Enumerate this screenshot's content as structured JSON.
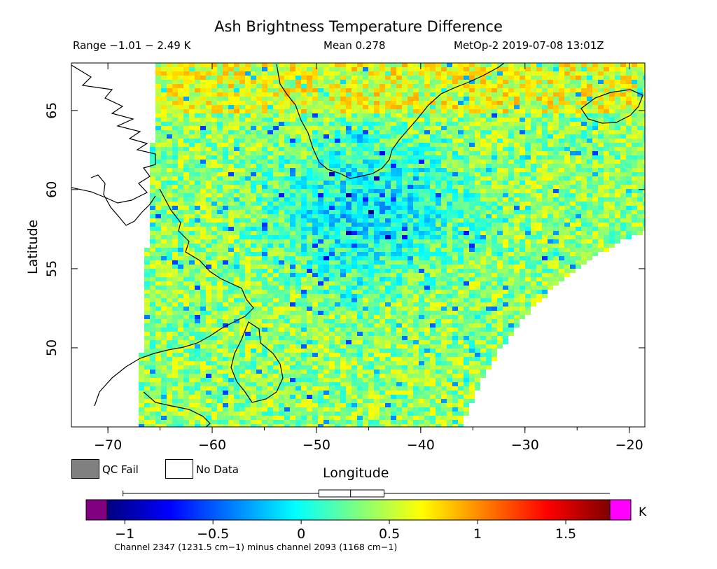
{
  "header": {
    "title": "Ash Brightness Temperature Difference",
    "range": "Range −1.01 − 2.49 K",
    "mean": "Mean 0.278",
    "satellite": "MetOp-2 2019-07-08 13:01Z"
  },
  "map": {
    "lon_range": [
      -73.5,
      -18.5
    ],
    "lat_range": [
      45,
      68
    ],
    "xlabel": "Longitude",
    "ylabel": "Latitude",
    "x_ticks": [
      {
        "value": -70,
        "label": "−70"
      },
      {
        "value": -60,
        "label": "−60"
      },
      {
        "value": -50,
        "label": "−50"
      },
      {
        "value": -40,
        "label": "−40"
      },
      {
        "value": -30,
        "label": "−30"
      },
      {
        "value": -20,
        "label": "−20"
      }
    ],
    "y_ticks": [
      {
        "value": 50,
        "label": "50"
      },
      {
        "value": 55,
        "label": "55"
      },
      {
        "value": 60,
        "label": "60"
      },
      {
        "value": 65,
        "label": "65"
      }
    ],
    "colors": {
      "qc_fail": "#808080",
      "no_data": "#ffffff",
      "coast": "#000000"
    }
  },
  "legend": {
    "qc_fail_label": "QC Fail",
    "no_data_label": "No Data"
  },
  "colorbar": {
    "range": [
      -1.1,
      1.75
    ],
    "unit": "K",
    "ticks": [
      {
        "value": -1,
        "label": "−1"
      },
      {
        "value": -0.5,
        "label": "−0.5"
      },
      {
        "value": 0,
        "label": "0"
      },
      {
        "value": 0.5,
        "label": "0.5"
      },
      {
        "value": 1,
        "label": "1"
      },
      {
        "value": 1.5,
        "label": "1.5"
      }
    ],
    "underflow_color": "#800080",
    "overflow_color": "#ff00ff",
    "boxplot": {
      "whisker_min": -1.01,
      "q1": 0.1,
      "median": 0.28,
      "q3": 0.47,
      "whisker_max": 1.75
    },
    "caption": "Channel 2347 (1231.5 cm−1) minus channel 2093 (1168 cm−1)"
  }
}
